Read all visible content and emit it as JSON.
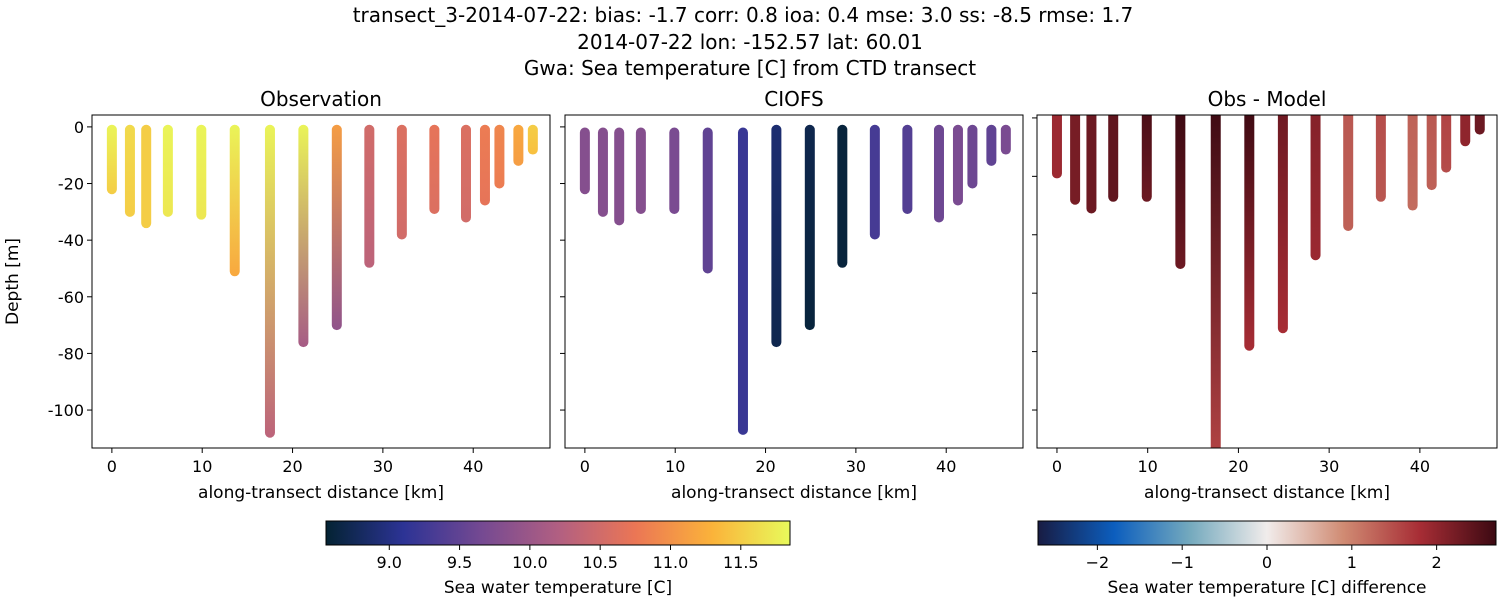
{
  "chart_data": {
    "title_lines": [
      "transect_3-2014-07-22: bias: -1.7  corr: 0.8  ioa: 0.4  mse: 3.0  ss: -8.5  rmse: 1.7",
      "2014-07-22 lon: -152.57 lat: 60.01",
      "Gwa: Sea temperature [C] from CTD transect"
    ],
    "type": "scatter",
    "stations_km": [
      0,
      2,
      3.8,
      6.2,
      9.9,
      13.6,
      17.5,
      21.2,
      24.9,
      28.5,
      32.1,
      35.7,
      39.2,
      41.3,
      42.9,
      45.0,
      46.6
    ],
    "panels": [
      {
        "title": "Observation",
        "xlabel": "along-transect distance [km]",
        "ylabel": "Depth [m]",
        "xlim": [
          -2.2,
          48.5
        ],
        "ylim": [
          -113.4,
          4.2
        ],
        "xticks": [
          0,
          10,
          20,
          30,
          40
        ],
        "yticks": [
          0,
          -20,
          -40,
          -60,
          -80,
          -100
        ],
        "colormap": "thermal",
        "top_depth": [
          -1,
          -1,
          -1,
          -1,
          -1,
          -1,
          -1,
          -1,
          -1,
          -1,
          -1,
          -1,
          -1,
          -1,
          -1,
          -1,
          -1
        ],
        "max_depth": [
          -22,
          -30,
          -34,
          -30,
          -31,
          -51,
          -108,
          -76,
          -70,
          -48,
          -38,
          -29,
          -32,
          -26,
          -20,
          -12,
          -8
        ],
        "temp_top": [
          11.8,
          11.6,
          11.5,
          11.8,
          11.8,
          11.8,
          11.8,
          11.8,
          11.1,
          10.5,
          10.6,
          10.7,
          10.6,
          10.8,
          10.9,
          11.2,
          11.5
        ],
        "temp_bottom": [
          11.5,
          11.5,
          11.5,
          11.7,
          11.7,
          11.2,
          10.3,
          10.1,
          9.9,
          10.3,
          10.5,
          10.6,
          10.5,
          10.7,
          10.8,
          11.1,
          11.4
        ]
      },
      {
        "title": "CIOFS",
        "xlabel": "along-transect distance [km]",
        "ylabel": "",
        "xlim": [
          -2.2,
          48.5
        ],
        "ylim": [
          -113.4,
          4.2
        ],
        "xticks": [
          0,
          10,
          20,
          30,
          40
        ],
        "yticks": [
          0,
          -20,
          -40,
          -60,
          -80,
          -100
        ],
        "colormap": "thermal",
        "top_depth": [
          -2,
          -2,
          -2,
          -2,
          -2,
          -2,
          -2,
          -1,
          -1,
          -1,
          -1,
          -1,
          -1,
          -1,
          -1,
          -1,
          -1
        ],
        "max_depth": [
          -22,
          -30,
          -33,
          -29,
          -29,
          -50,
          -107,
          -76,
          -70,
          -48,
          -38,
          -29,
          -32,
          -26,
          -20,
          -12,
          -8
        ],
        "temp_top": [
          9.8,
          9.8,
          9.8,
          9.8,
          9.7,
          9.5,
          9.2,
          8.9,
          8.7,
          8.6,
          9.3,
          9.4,
          9.6,
          9.7,
          9.6,
          9.5,
          9.7
        ],
        "temp_bottom": [
          9.8,
          9.8,
          9.8,
          9.8,
          9.7,
          9.5,
          9.2,
          8.7,
          8.6,
          8.6,
          9.3,
          9.4,
          9.6,
          9.7,
          9.6,
          9.5,
          9.7
        ]
      },
      {
        "title": "Obs - Model",
        "xlabel": "along-transect distance [km]",
        "ylabel": "",
        "xlim": [
          -2.2,
          48.5
        ],
        "ylim": [
          -113,
          1
        ],
        "xticks": [
          0,
          10,
          20,
          30,
          40
        ],
        "yticks": [
          0,
          -20,
          -40,
          -60,
          -80,
          -100
        ],
        "colormap": "balance",
        "top_depth": [
          2,
          3,
          3,
          3,
          3,
          3,
          3,
          3,
          3,
          3,
          3,
          3,
          3,
          3,
          3,
          3,
          3
        ],
        "max_depth": [
          -19,
          -28,
          -31,
          -27,
          -27,
          -50,
          -113,
          -78,
          -72,
          -47,
          -37,
          -27,
          -30,
          -23,
          -17,
          -8,
          -4
        ],
        "temp_top": [
          1.9,
          2.2,
          2.3,
          2.4,
          2.6,
          2.7,
          2.7,
          2.7,
          2.3,
          2.1,
          1.4,
          1.5,
          1.3,
          1.4,
          1.6,
          2.0,
          2.3
        ],
        "temp_bottom": [
          1.9,
          2.2,
          2.3,
          2.4,
          2.3,
          2.3,
          1.6,
          1.8,
          1.8,
          1.9,
          1.3,
          1.4,
          1.2,
          1.3,
          1.5,
          2.0,
          2.3
        ]
      }
    ],
    "colorbars": [
      {
        "label": "Sea water temperature [C]",
        "range": [
          8.55,
          11.85
        ],
        "ticks": [
          "9.0",
          "9.5",
          "10.0",
          "10.5",
          "11.0",
          "11.5"
        ],
        "tick_values": [
          9.0,
          9.5,
          10.0,
          10.5,
          11.0,
          11.5
        ],
        "colormap": "thermal"
      },
      {
        "label": "Sea water temperature [C] difference",
        "range": [
          -2.7,
          2.7
        ],
        "ticks": [
          "−2",
          "−1",
          "0",
          "1",
          "2"
        ],
        "tick_values": [
          -2,
          -1,
          0,
          1,
          2
        ],
        "colormap": "balance"
      }
    ],
    "colormaps": {
      "thermal": [
        "#042333",
        "#2c3395",
        "#744992",
        "#b15f82",
        "#eb7655",
        "#fbb33a",
        "#e8fa5b"
      ],
      "balance": [
        "#181c43",
        "#0c5ebe",
        "#75aabe",
        "#f1eceb",
        "#d08b73",
        "#a72d35",
        "#3c0912"
      ]
    }
  }
}
